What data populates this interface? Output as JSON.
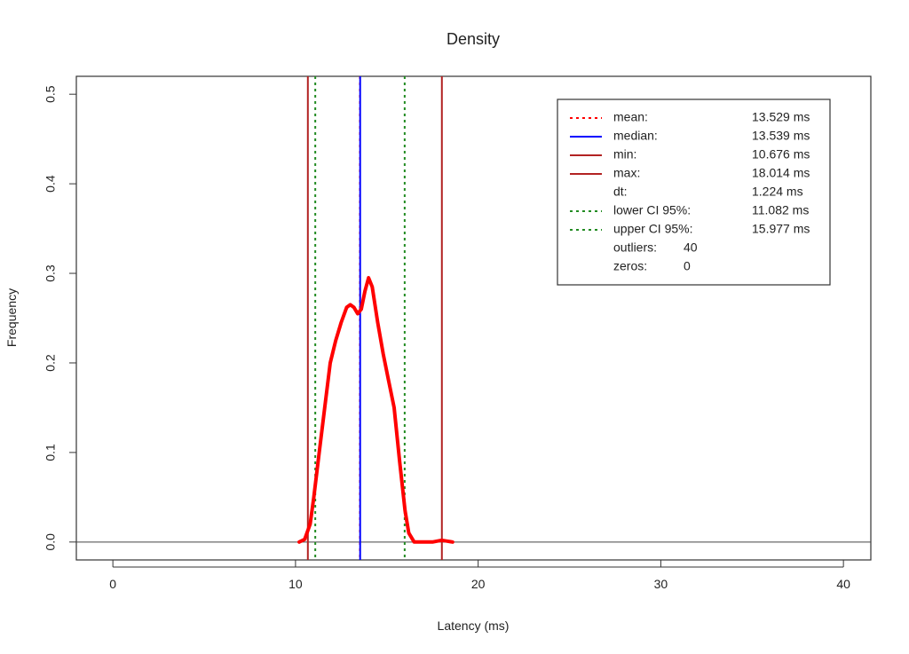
{
  "chart_data": {
    "type": "line",
    "title": "Density",
    "xlabel": "Latency (ms)",
    "ylabel": "Frequency",
    "xlim": [
      -2,
      41.5
    ],
    "ylim": [
      -0.02,
      0.52
    ],
    "x_ticks": [
      0,
      10,
      20,
      30,
      40
    ],
    "y_ticks": [
      0.0,
      0.1,
      0.2,
      0.3,
      0.4,
      0.5
    ],
    "x_tick_labels": [
      "0",
      "10",
      "20",
      "30",
      "40"
    ],
    "y_tick_labels": [
      "0.0",
      "0.1",
      "0.2",
      "0.3",
      "0.4",
      "0.5"
    ],
    "grid": false,
    "legend_position": "top-right",
    "series": [
      {
        "name": "density",
        "color": "#ff0000",
        "x": [
          10.2,
          10.5,
          10.8,
          11.0,
          11.3,
          11.6,
          11.9,
          12.2,
          12.5,
          12.8,
          13.0,
          13.2,
          13.4,
          13.6,
          13.8,
          14.0,
          14.2,
          14.5,
          14.8,
          15.1,
          15.4,
          15.7,
          16.0,
          16.2,
          16.5,
          17.0,
          17.5,
          18.0,
          18.3,
          18.6
        ],
        "y": [
          0.0,
          0.003,
          0.02,
          0.05,
          0.1,
          0.15,
          0.2,
          0.225,
          0.245,
          0.262,
          0.265,
          0.262,
          0.255,
          0.26,
          0.28,
          0.295,
          0.285,
          0.245,
          0.21,
          0.18,
          0.15,
          0.09,
          0.035,
          0.01,
          0.0,
          0.0,
          0.0,
          0.002,
          0.001,
          0.0
        ]
      }
    ],
    "vertical_lines": [
      {
        "key": "mean",
        "value": 13.529,
        "color": "#ff0000",
        "dash": "dotted"
      },
      {
        "key": "median",
        "value": 13.539,
        "color": "#0000ff",
        "dash": "solid"
      },
      {
        "key": "min",
        "value": 10.676,
        "color": "#b22222",
        "dash": "solid"
      },
      {
        "key": "max",
        "value": 18.014,
        "color": "#b22222",
        "dash": "solid"
      },
      {
        "key": "lower_ci",
        "value": 11.082,
        "color": "#228b22",
        "dash": "dotted"
      },
      {
        "key": "upper_ci",
        "value": 15.977,
        "color": "#228b22",
        "dash": "dotted"
      }
    ],
    "legend": [
      {
        "label": "mean:",
        "value": "13.529 ms",
        "color": "#ff0000",
        "dash": "dotted"
      },
      {
        "label": "median:",
        "value": "13.539 ms",
        "color": "#0000ff",
        "dash": "solid"
      },
      {
        "label": "min:",
        "value": "10.676 ms",
        "color": "#b22222",
        "dash": "solid"
      },
      {
        "label": "max:",
        "value": "18.014 ms",
        "color": "#b22222",
        "dash": "solid"
      },
      {
        "label": "dt:",
        "value": "1.224 ms",
        "color": "",
        "dash": "none"
      },
      {
        "label": "lower CI 95%:",
        "value": "11.082 ms",
        "color": "#228b22",
        "dash": "dotted"
      },
      {
        "label": "upper CI 95%:",
        "value": "15.977 ms",
        "color": "#228b22",
        "dash": "dotted"
      },
      {
        "label": "outliers:",
        "value": "40",
        "color": "",
        "dash": "none",
        "short": true
      },
      {
        "label": "zeros:",
        "value": "0",
        "color": "",
        "dash": "none",
        "short": true
      }
    ]
  }
}
